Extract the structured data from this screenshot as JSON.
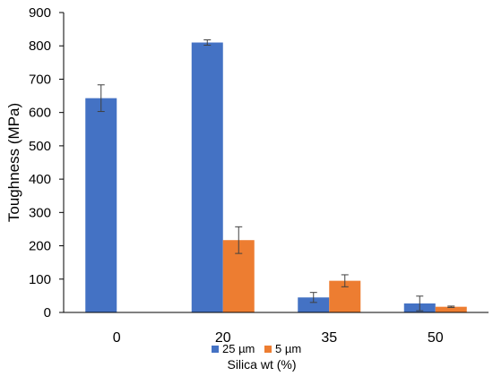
{
  "chart_data": {
    "type": "bar",
    "categories": [
      "0",
      "20",
      "35",
      "50"
    ],
    "series": [
      {
        "name": "25 µm",
        "color": "#4472C4",
        "values": [
          643,
          810,
          45,
          27
        ],
        "errors": [
          40,
          8,
          15,
          22
        ]
      },
      {
        "name": "5  µm",
        "color": "#ED7D31",
        "values": [
          null,
          217,
          95,
          17
        ],
        "errors": [
          null,
          40,
          18,
          2
        ]
      }
    ],
    "xlabel": "Silica wt (%)",
    "ylabel": "Toughness (MPa)",
    "ylim": [
      0,
      900
    ],
    "yticks": [
      0,
      100,
      200,
      300,
      400,
      500,
      600,
      700,
      800,
      900
    ],
    "grid": false,
    "legend": "bottom-center"
  }
}
